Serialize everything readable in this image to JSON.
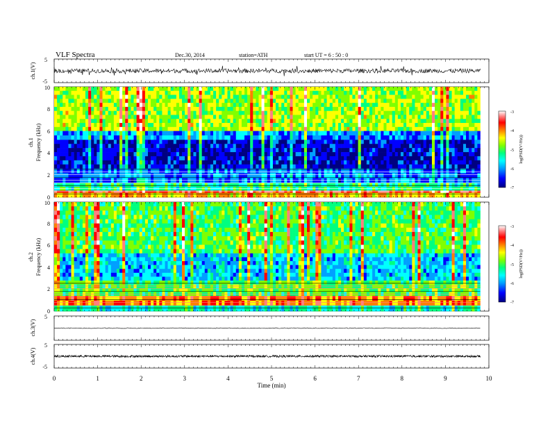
{
  "header": {
    "title": "VLF  Spectra",
    "date": "Dec.30, 2014",
    "station": "station=ATH",
    "start": "start  UT  =   6  : 50 : 0"
  },
  "chart_data": [
    {
      "type": "line",
      "panel": "ch1-waveform",
      "ylabel": "ch.1(V)",
      "ylim": [
        -5,
        5
      ],
      "yticks": [
        "5",
        "-5"
      ],
      "baseline": 0,
      "amplitude": "noisy, ~±1 V with spikes to ~±2.5 V"
    },
    {
      "type": "heatmap",
      "panel": "ch1-spectrogram",
      "ylabel_channel": "ch.1",
      "ylabel": "Frequency  (kHz)",
      "ylim": [
        0,
        10
      ],
      "yticks": [
        "0",
        "2",
        "4",
        "6",
        "8",
        "10"
      ],
      "x_range_min": [
        0,
        9.8
      ],
      "colorbar": {
        "label": "log(PSD(V²/Hz))",
        "range": [
          -7,
          -3
        ],
        "ticks": [
          "-3",
          "-4",
          "-5",
          "-6",
          "-7"
        ],
        "colors": [
          "#000080",
          "#0000ff",
          "#00a0ff",
          "#00ffff",
          "#00ff80",
          "#80ff00",
          "#ffff00",
          "#ff8000",
          "#ff0000",
          "#ff8080",
          "#ffffff"
        ]
      },
      "bands": [
        {
          "f_from": 10,
          "f_to": 6,
          "level": -4.9
        },
        {
          "f_from": 6,
          "f_to": 5.2,
          "level": -6.1
        },
        {
          "f_from": 5.2,
          "f_to": 2.6,
          "level": -6.6
        },
        {
          "f_from": 2.6,
          "f_to": 1.3,
          "level": -6.2
        },
        {
          "f_from": 1.3,
          "f_to": 0.6,
          "level": -5.5
        },
        {
          "f_from": 0.6,
          "f_to": 0.4,
          "level": -3.8
        },
        {
          "f_from": 0.4,
          "f_to": 0,
          "level": -4.5
        }
      ]
    },
    {
      "type": "heatmap",
      "panel": "ch2-spectrogram",
      "ylabel_channel": "ch.2",
      "ylabel": "Frequency  (kHz)",
      "ylim": [
        0,
        10
      ],
      "yticks": [
        "0",
        "2",
        "4",
        "6",
        "8",
        "10"
      ],
      "x_range_min": [
        0,
        9.8
      ],
      "colorbar": {
        "label": "log(PSD(V²/Hz))",
        "range": [
          -7,
          -3
        ],
        "ticks": [
          "-3",
          "-4",
          "-5",
          "-6",
          "-7"
        ]
      },
      "bands": [
        {
          "f_from": 10,
          "f_to": 5.3,
          "level": -5.2
        },
        {
          "f_from": 5.3,
          "f_to": 2.8,
          "level": -5.9
        },
        {
          "f_from": 2.8,
          "f_to": 1.4,
          "level": -5.2
        },
        {
          "f_from": 1.4,
          "f_to": 0.5,
          "level": -4.3
        },
        {
          "f_from": 0.5,
          "f_to": 0,
          "level": -5.6
        }
      ]
    },
    {
      "type": "line",
      "panel": "ch3-waveform",
      "ylabel": "ch.3(V)",
      "ylim": [
        -5,
        5
      ],
      "yticks": [
        "5"
      ],
      "baseline": 0,
      "amplitude": "~±0.3 V"
    },
    {
      "type": "line",
      "panel": "ch4-waveform",
      "ylabel": "ch.4(V)",
      "ylim": [
        -5,
        5
      ],
      "yticks": [
        "5",
        "-5"
      ],
      "baseline": 0,
      "amplitude": "~±0.5 V, dense"
    }
  ],
  "xaxis": {
    "xlabel": "Time  (min)",
    "xlim": [
      0,
      10
    ],
    "ticks": [
      "0",
      "1",
      "2",
      "3",
      "4",
      "5",
      "6",
      "7",
      "8",
      "9",
      "10"
    ]
  }
}
